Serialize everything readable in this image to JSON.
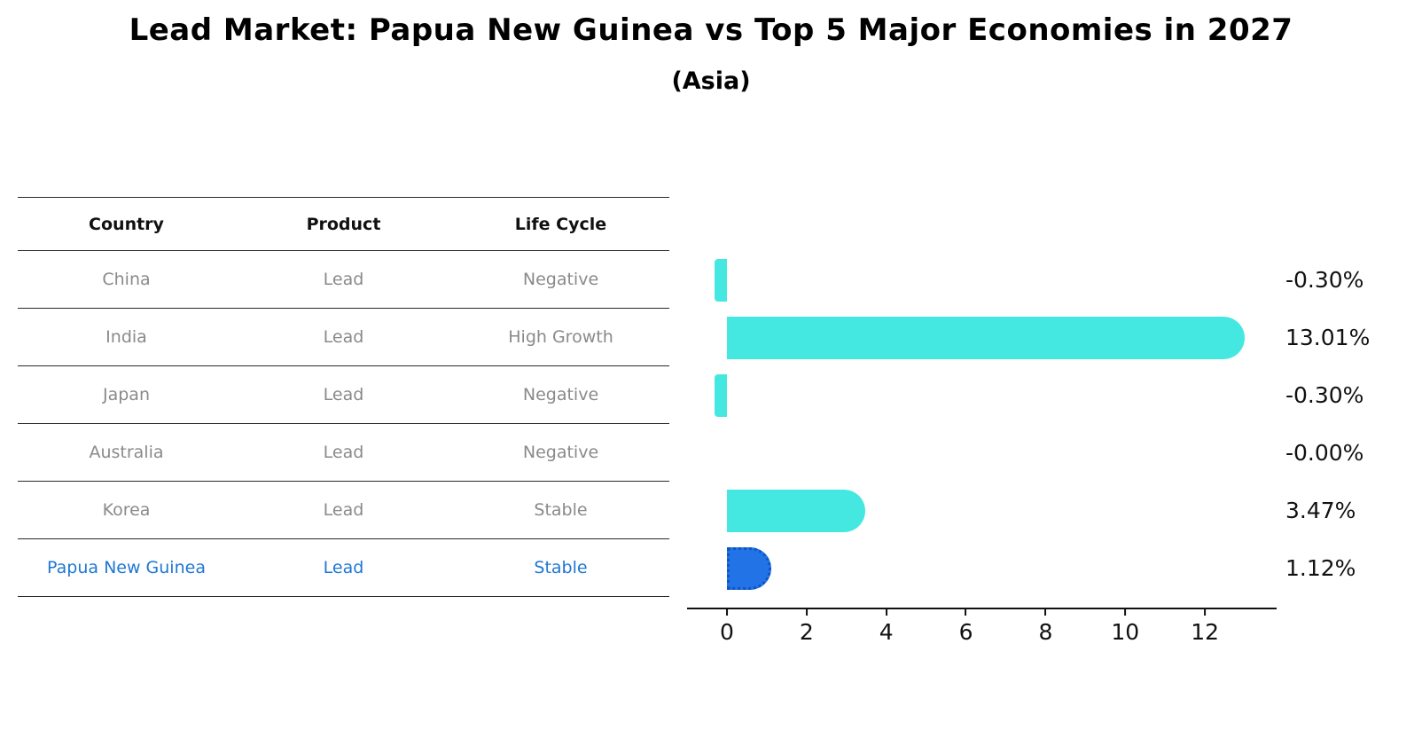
{
  "title": "Lead Market: Papua New Guinea vs Top 5 Major Economies in 2027",
  "subtitle": "(Asia)",
  "table": {
    "headers": [
      "Country",
      "Product",
      "Life Cycle"
    ],
    "rows": [
      {
        "country": "China",
        "product": "Lead",
        "life_cycle": "Negative",
        "highlight": false
      },
      {
        "country": "India",
        "product": "Lead",
        "life_cycle": "High Growth",
        "highlight": false
      },
      {
        "country": "Japan",
        "product": "Lead",
        "life_cycle": "Negative",
        "highlight": false
      },
      {
        "country": "Australia",
        "product": "Lead",
        "life_cycle": "Negative",
        "highlight": false
      },
      {
        "country": "Korea",
        "product": "Lead",
        "life_cycle": "Stable",
        "highlight": false
      },
      {
        "country": "Papua New Guinea",
        "product": "Lead",
        "life_cycle": "Stable",
        "highlight": true
      }
    ]
  },
  "chart_data": {
    "type": "bar",
    "orientation": "horizontal",
    "title": "Lead Market: Papua New Guinea vs Top 5 Major Economies in 2027 (Asia)",
    "categories": [
      "China",
      "India",
      "Japan",
      "Australia",
      "Korea",
      "Papua New Guinea"
    ],
    "values": [
      -0.3,
      13.01,
      -0.3,
      -0.0,
      3.47,
      1.12
    ],
    "value_labels": [
      "-0.30%",
      "13.01%",
      "-0.30%",
      "-0.00%",
      "3.47%",
      "1.12%"
    ],
    "x_ticks": [
      0,
      2,
      4,
      6,
      8,
      10,
      12
    ],
    "xlim": [
      -1.0,
      13.8
    ],
    "xlabel": "",
    "ylabel": "",
    "grid": false,
    "legend": false,
    "bar_color": "#45E8E1",
    "highlight_index": 5,
    "highlight_color": "#2173E6",
    "highlight_border_color": "#0F55C4"
  },
  "colors": {
    "accent_blue": "#1F77D4",
    "text_gray": "#8A8A8A",
    "axis_color": "#111111"
  }
}
